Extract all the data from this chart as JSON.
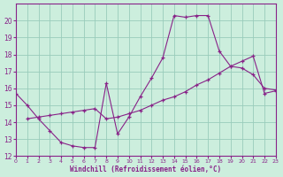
{
  "xlabel": "Windchill (Refroidissement éolien,°C)",
  "xlim": [
    0,
    23
  ],
  "ylim": [
    12,
    21
  ],
  "yticks": [
    12,
    13,
    14,
    15,
    16,
    17,
    18,
    19,
    20
  ],
  "xticks": [
    0,
    1,
    2,
    3,
    4,
    5,
    6,
    7,
    8,
    9,
    10,
    11,
    12,
    13,
    14,
    15,
    16,
    17,
    18,
    19,
    20,
    21,
    22,
    23
  ],
  "bg_color": "#cceedd",
  "line_color": "#882288",
  "grid_color": "#99ccbb",
  "line1_x": [
    0,
    1,
    2,
    3,
    4,
    5,
    6,
    7,
    8,
    9,
    10,
    11,
    12,
    13,
    14,
    15,
    16,
    17,
    18,
    19,
    20,
    21,
    22,
    23
  ],
  "line1_y": [
    15.7,
    15.0,
    14.2,
    13.5,
    12.8,
    12.6,
    12.5,
    12.5,
    16.3,
    13.3,
    14.3,
    15.5,
    16.6,
    17.8,
    20.3,
    20.2,
    20.3,
    20.3,
    18.2,
    17.3,
    17.2,
    16.8,
    16.0,
    15.9
  ],
  "line2_x": [
    1,
    2,
    3,
    4,
    5,
    6,
    7,
    8,
    9,
    10,
    11,
    12,
    13,
    14,
    15,
    16,
    17,
    18,
    19,
    20,
    21,
    22,
    23
  ],
  "line2_y": [
    14.2,
    14.3,
    14.4,
    14.5,
    14.6,
    14.7,
    14.8,
    14.2,
    14.3,
    14.5,
    14.7,
    15.0,
    15.3,
    15.5,
    15.8,
    16.2,
    16.5,
    16.9,
    17.3,
    17.6,
    17.9,
    15.7,
    15.85
  ]
}
